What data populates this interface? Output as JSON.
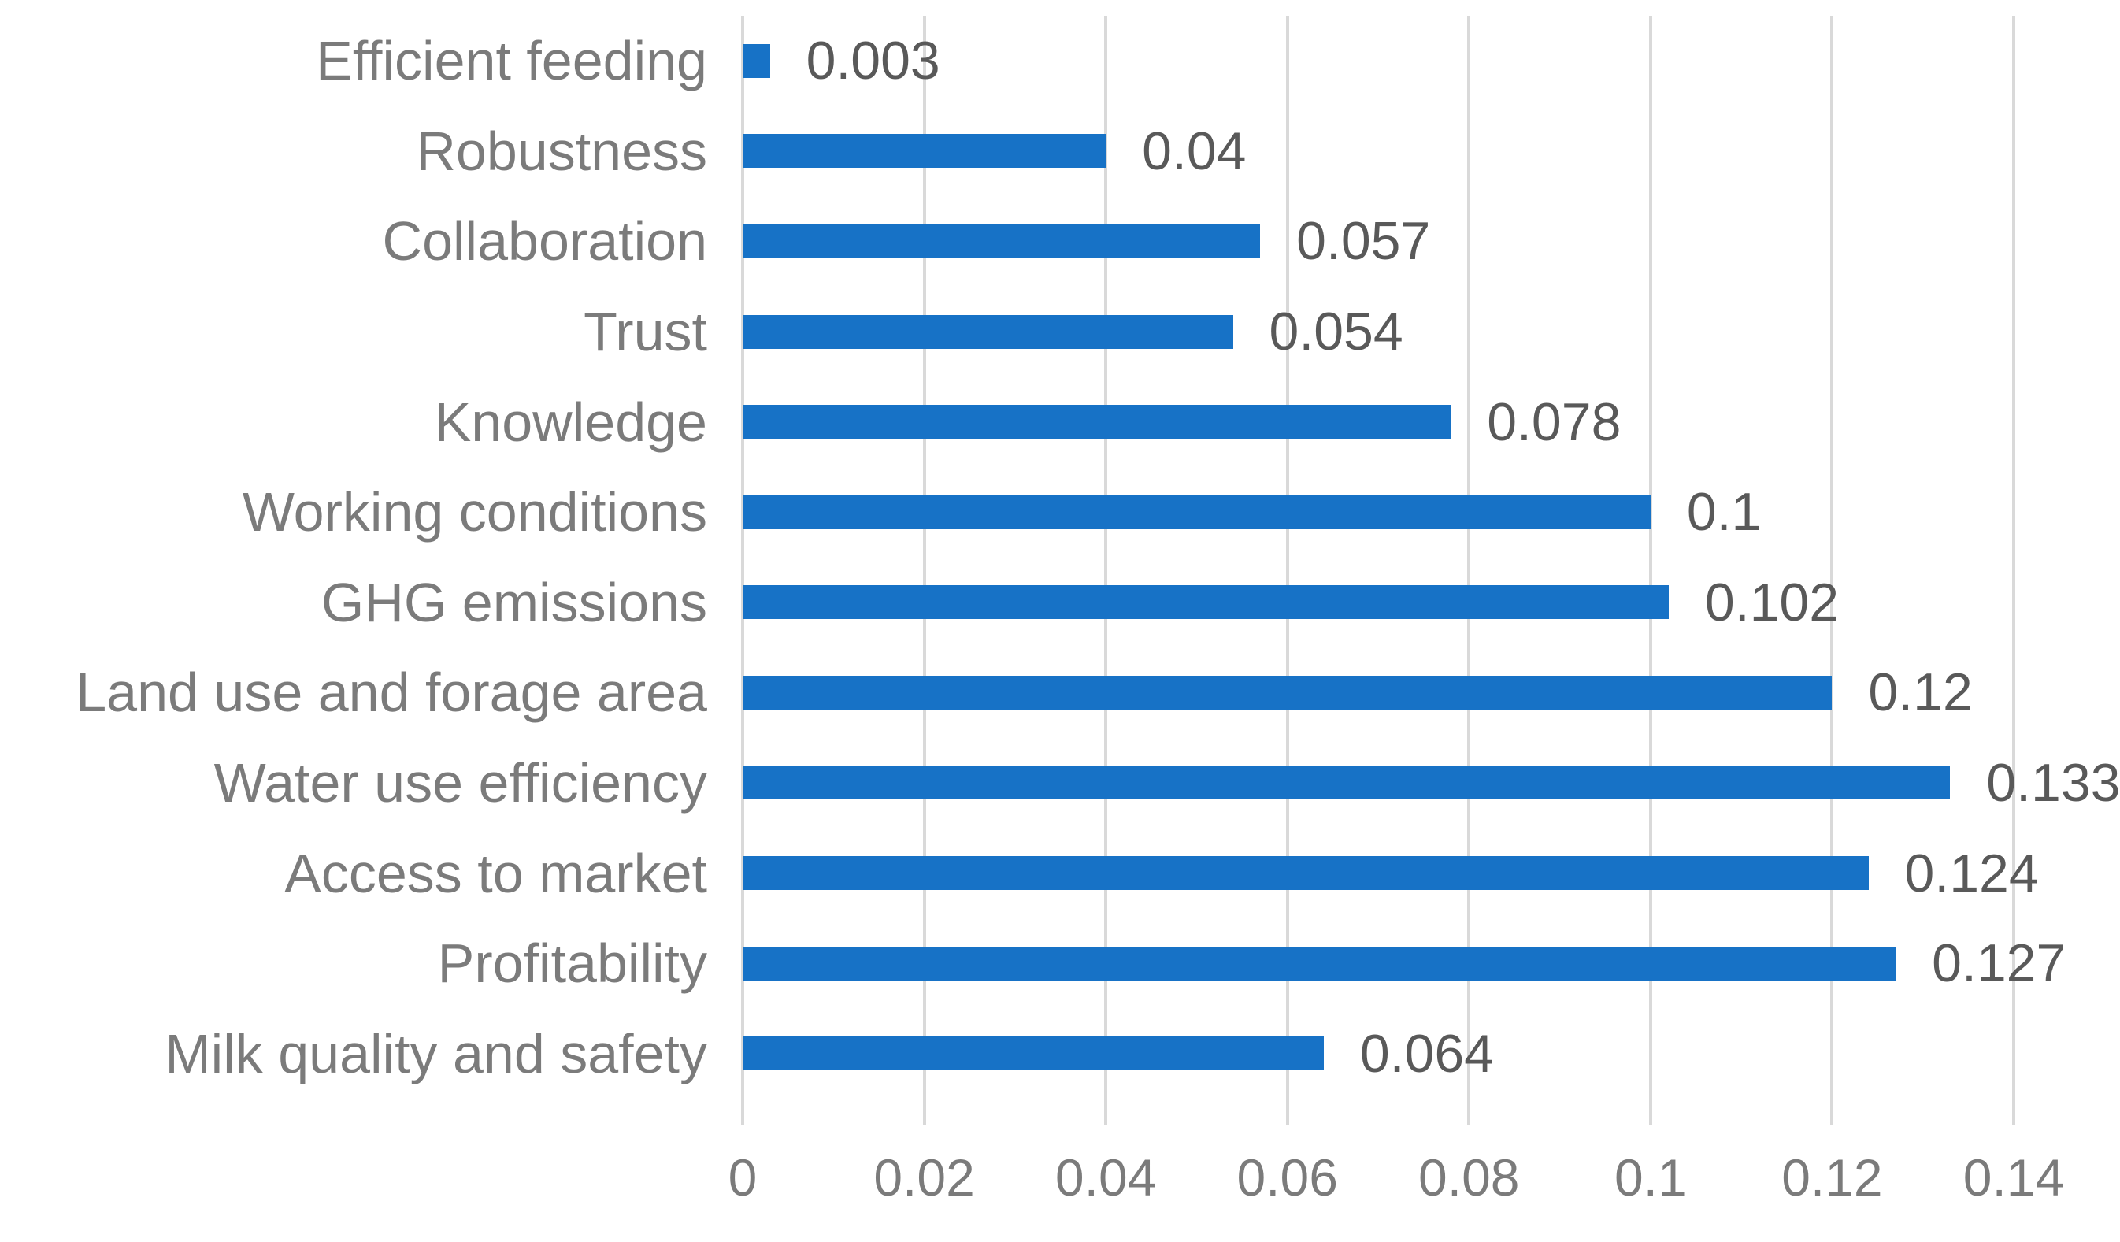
{
  "chart_data": {
    "type": "bar",
    "orientation": "horizontal",
    "title": "",
    "xlabel": "",
    "ylabel": "",
    "legend": null,
    "grid": true,
    "categories": [
      "Efficient feeding",
      "Robustness",
      "Collaboration",
      "Trust",
      "Knowledge",
      "Working conditions",
      "GHG emissions",
      "Land use and forage area",
      "Water use efficiency",
      "Access to market",
      "Profitability",
      "Milk quality and safety"
    ],
    "values": [
      0.003,
      0.04,
      0.057,
      0.054,
      0.078,
      0.1,
      0.102,
      0.12,
      0.133,
      0.124,
      0.127,
      0.064
    ],
    "value_labels": [
      "0.003",
      "0.04",
      "0.057",
      "0.054",
      "0.078",
      "0.1",
      "0.102",
      "0.12",
      "0.133",
      "0.124",
      "0.127",
      "0.064"
    ],
    "x_ticks": [
      "0",
      "0.02",
      "0.04",
      "0.06",
      "0.08",
      "0.1",
      "0.12",
      "0.14"
    ],
    "xlim": [
      0,
      0.14
    ]
  },
  "colors": {
    "bar": "#1772c6",
    "gridline": "#d9d9d9",
    "category_text": "#7b7b7b",
    "value_text": "#595959",
    "axis_text": "#7b7b7b",
    "background": "#ffffff"
  }
}
